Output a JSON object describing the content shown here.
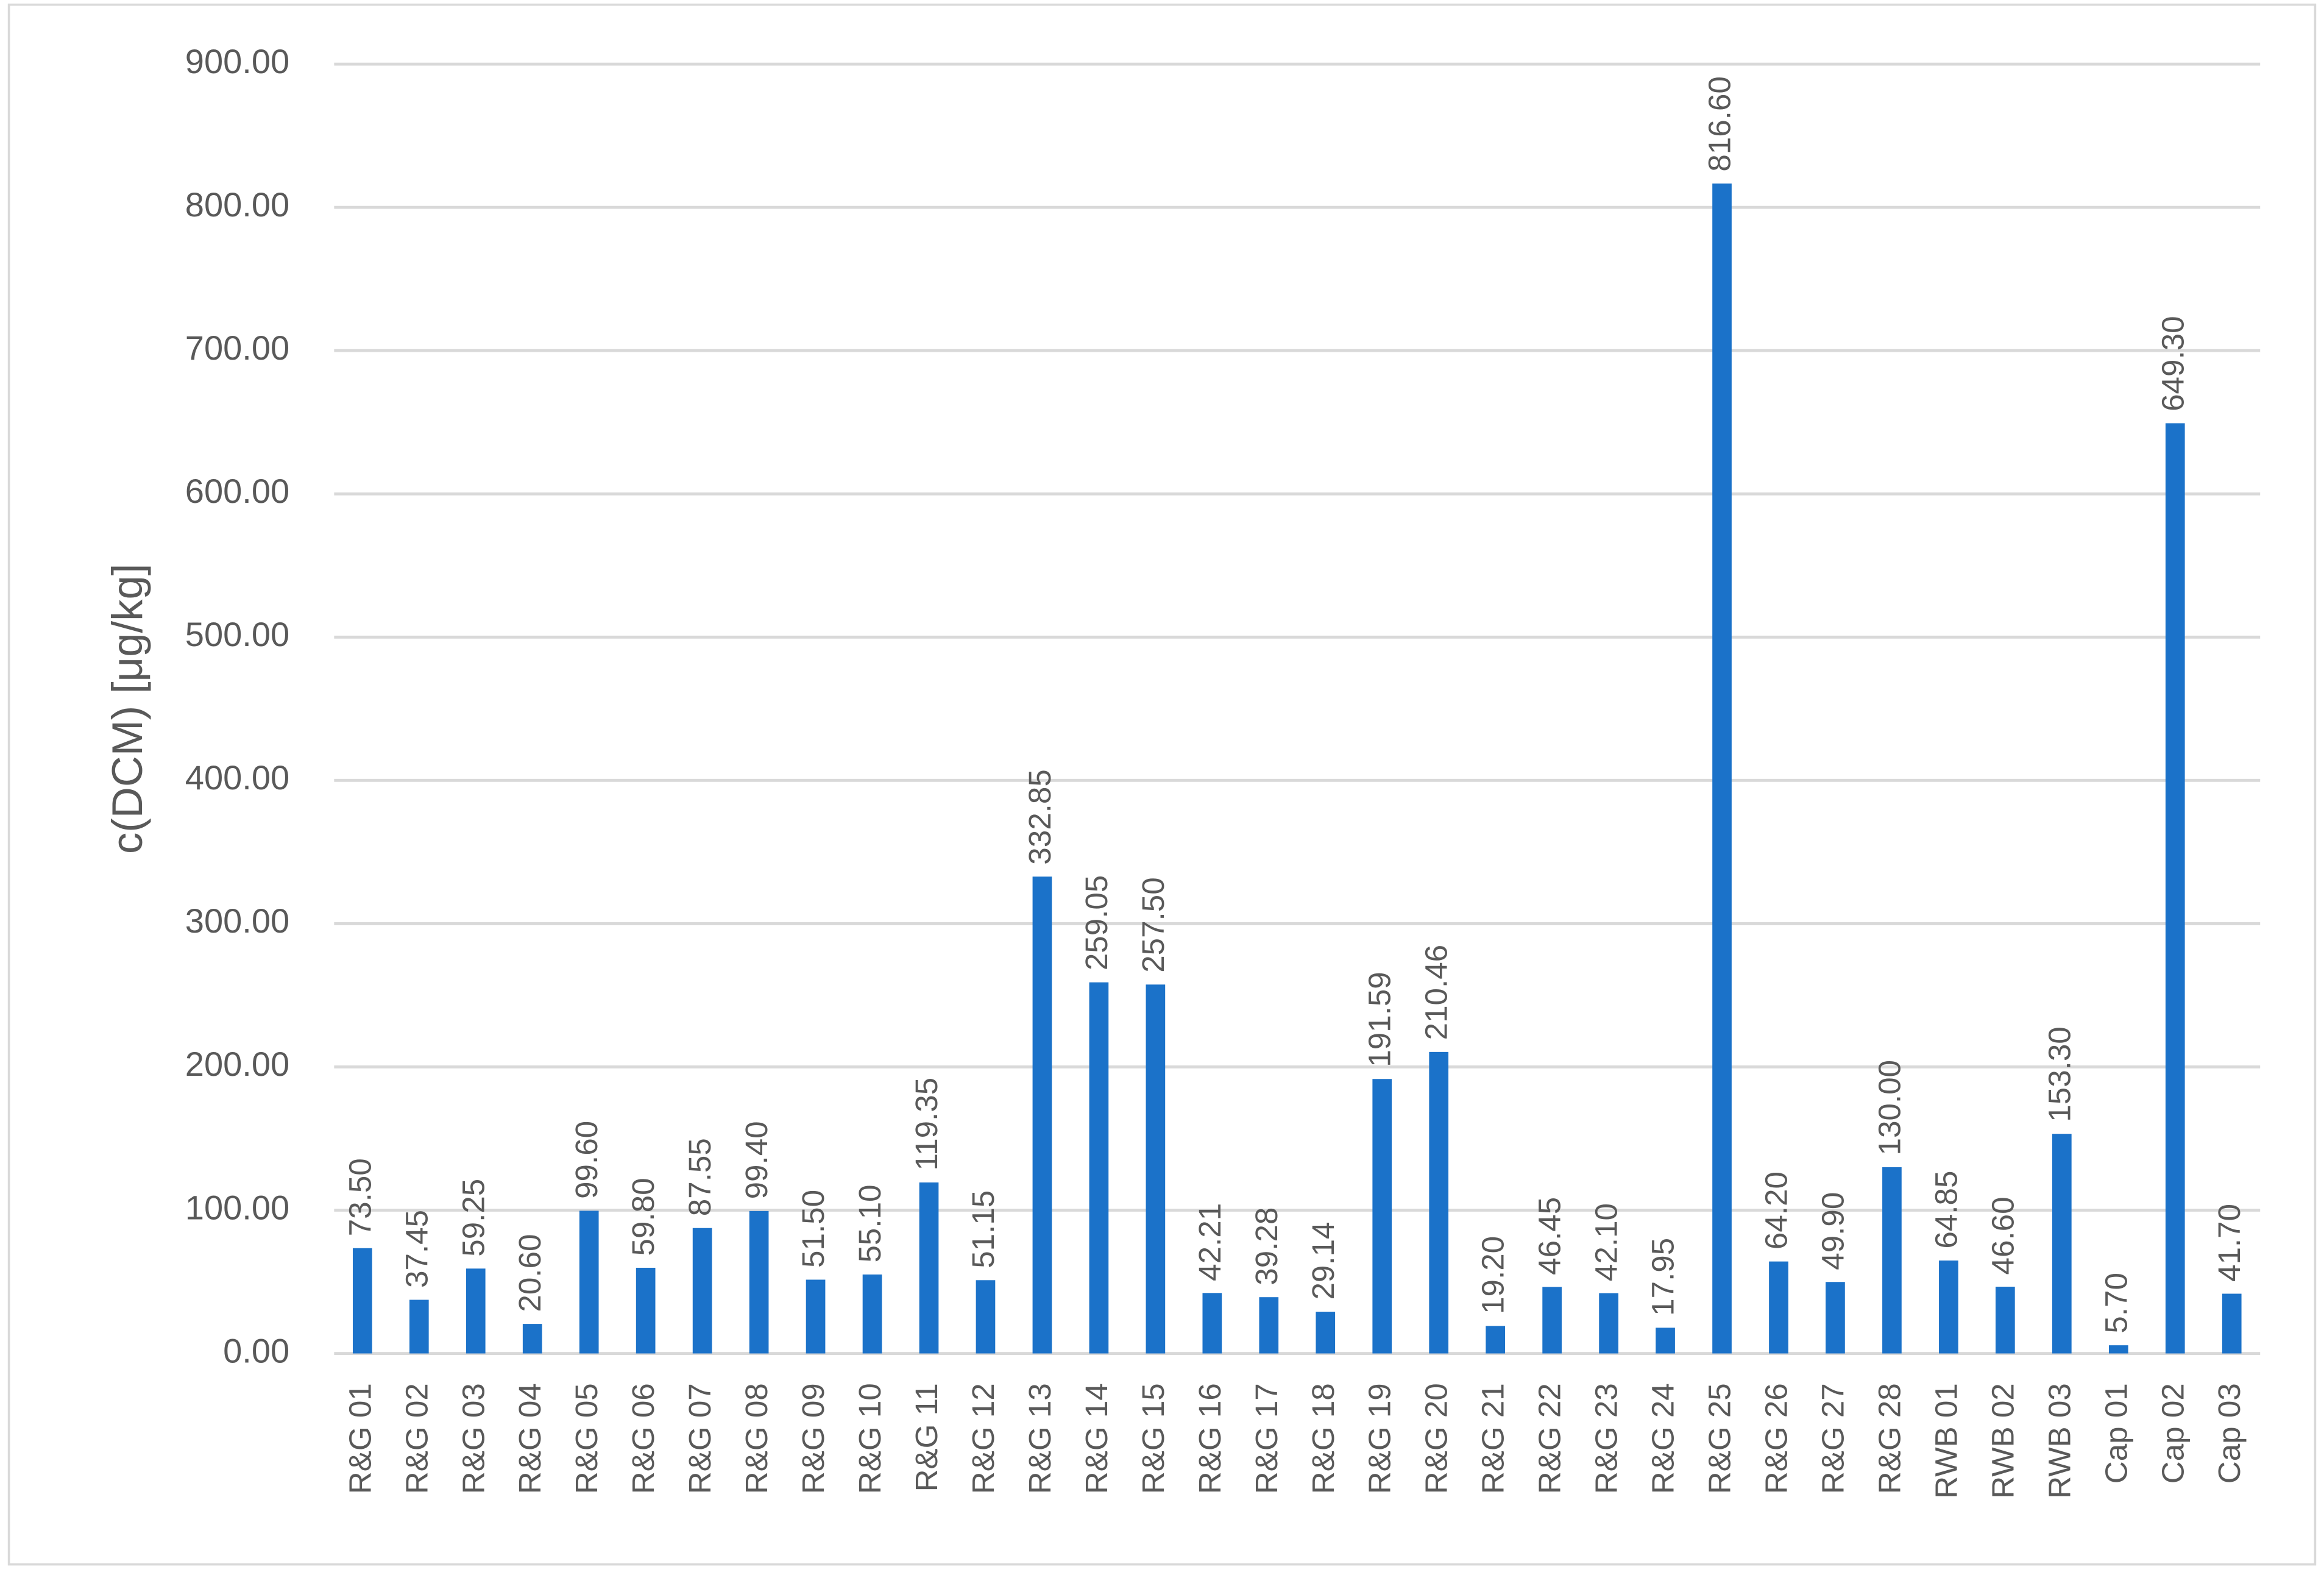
{
  "chart_data": {
    "type": "bar",
    "y_label": "c(DCM) [μg/kg]",
    "categories": [
      "R&G 01",
      "R&G 02",
      "R&G 03",
      "R&G 04",
      "R&G 05",
      "R&G 06",
      "R&G 07",
      "R&G 08",
      "R&G 09",
      "R&G 10",
      "R&G 11",
      "R&G 12",
      "R&G 13",
      "R&G 14",
      "R&G 15",
      "R&G 16",
      "R&G 17",
      "R&G 18",
      "R&G 19",
      "R&G 20",
      "R&G 21",
      "R&G 22",
      "R&G 23",
      "R&G 24",
      "R&G 25",
      "R&G 26",
      "R&G 27",
      "R&G 28",
      "RWB 01",
      "RWB 02",
      "RWB 03",
      "Cap 01",
      "Cap 02",
      "Cap 03"
    ],
    "values": [
      73.5,
      37.45,
      59.25,
      20.6,
      99.6,
      59.8,
      87.55,
      99.4,
      51.5,
      55.1,
      119.35,
      51.15,
      332.85,
      259.05,
      257.5,
      42.21,
      39.28,
      29.14,
      191.59,
      210.46,
      19.2,
      46.45,
      42.1,
      17.95,
      816.6,
      64.2,
      49.9,
      130,
      64.85,
      46.6,
      153.3,
      5.7,
      649.3,
      41.7
    ],
    "value_labels": [
      "73.50",
      "37.45",
      "59.25",
      "20.60",
      "99.60",
      "59.80",
      "87.55",
      "99.40",
      "51.50",
      "55.10",
      "119.35",
      "51.15",
      "332.85",
      "259.05",
      "257.50",
      "42.21",
      "39.28",
      "29.14",
      "191.59",
      "210.46",
      "19.20",
      "46.45",
      "42.10",
      "17.95",
      "816.60",
      "64.20",
      "49.90",
      "130.00",
      "64.85",
      "46.60",
      "153.30",
      "5.70",
      "649.30",
      "41.70"
    ],
    "color": "#1b72c9",
    "ylim": [
      0,
      900
    ],
    "yticks": [
      {
        "value": 0,
        "label": "0.00"
      },
      {
        "value": 100,
        "label": "100.00"
      },
      {
        "value": 200,
        "label": "200.00"
      },
      {
        "value": 300,
        "label": "300.00"
      },
      {
        "value": 400,
        "label": "400.00"
      },
      {
        "value": 500,
        "label": "500.00"
      },
      {
        "value": 600,
        "label": "600.00"
      },
      {
        "value": 700,
        "label": "700.00"
      },
      {
        "value": 800,
        "label": "800.00"
      },
      {
        "value": 900,
        "label": "900.00"
      }
    ],
    "grid": true
  }
}
